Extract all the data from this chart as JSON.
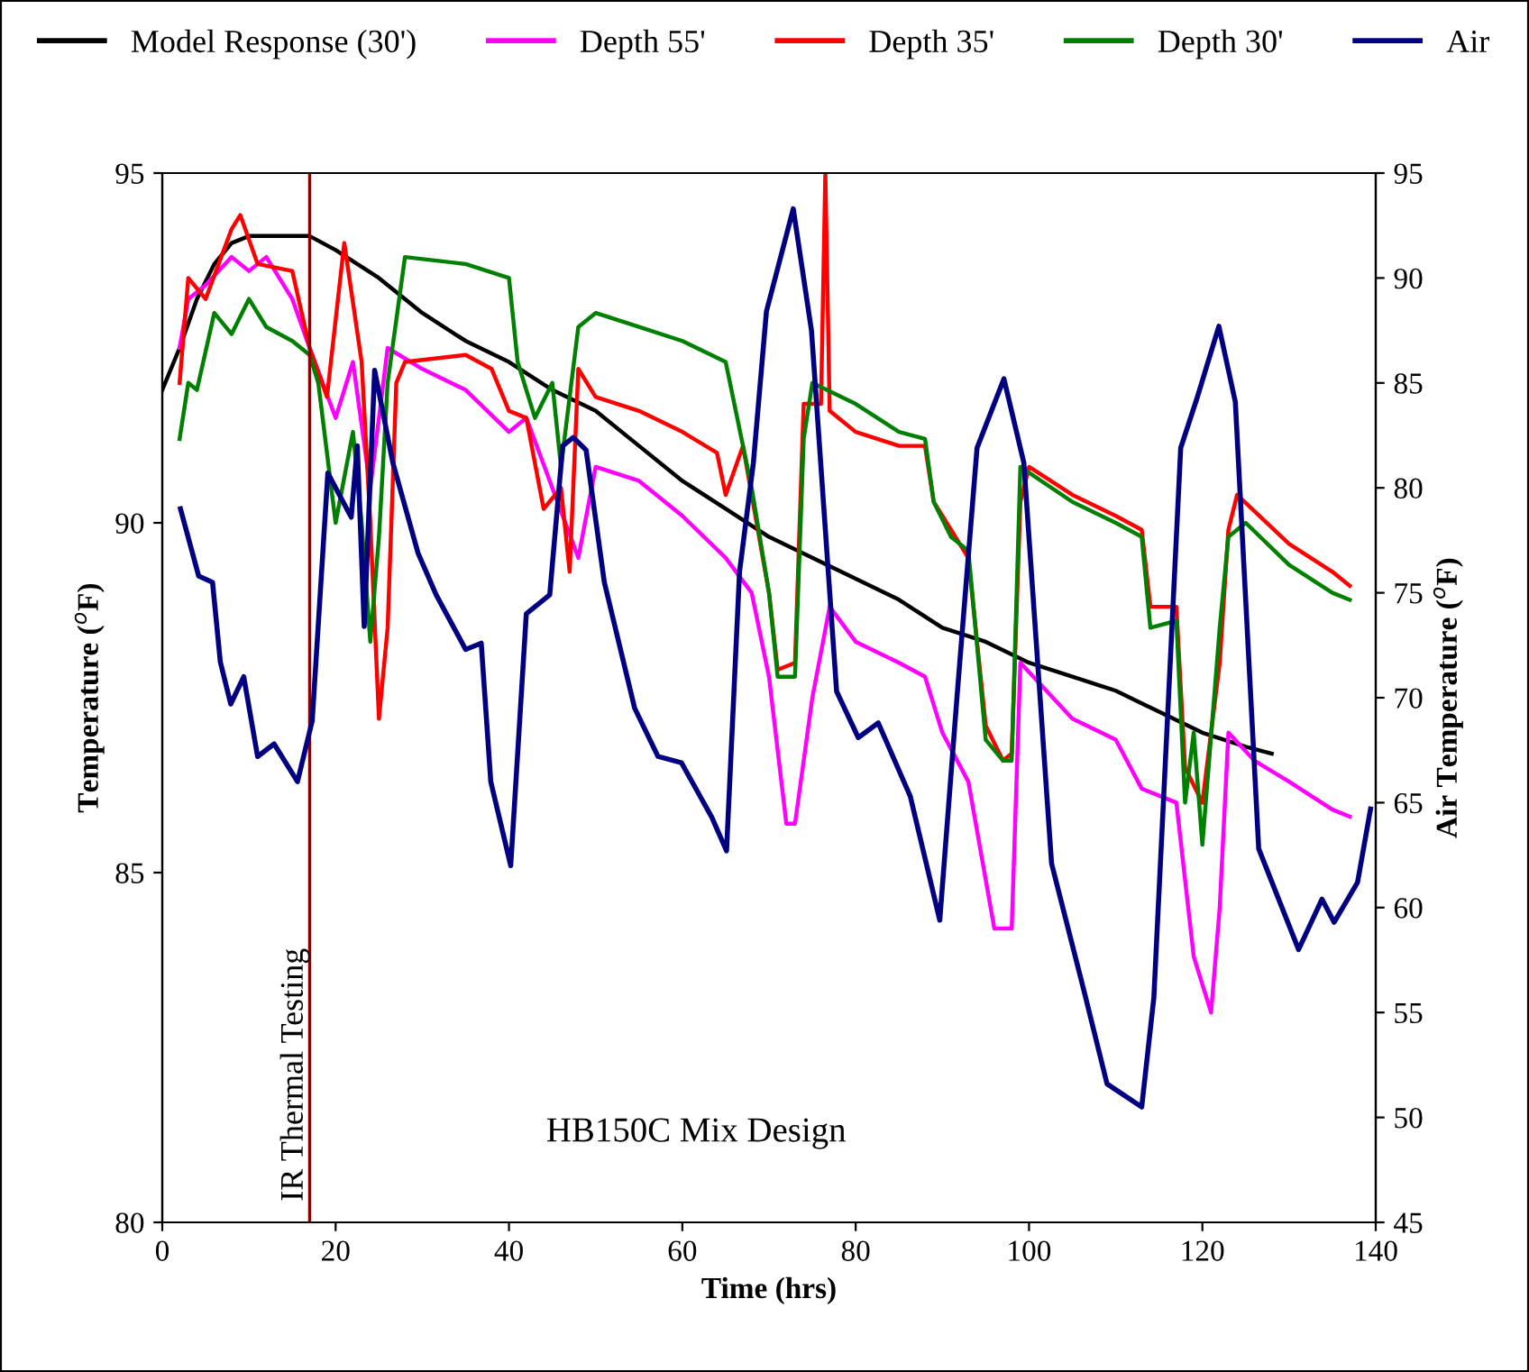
{
  "chart_data": {
    "type": "line",
    "xlabel": "Time (hrs)",
    "ylabel": "Temperature ($^{o}$F)",
    "y2label": "Air Temperature ($^{o}$F)",
    "xlim": [
      0,
      140
    ],
    "xticks": [
      0,
      20,
      40,
      60,
      80,
      100,
      120,
      140
    ],
    "ylim": [
      80,
      95
    ],
    "yticks": [
      80,
      85,
      90,
      95
    ],
    "y2lim": [
      45,
      95
    ],
    "y2ticks": [
      45,
      50,
      55,
      60,
      65,
      70,
      75,
      80,
      85,
      90,
      95
    ],
    "grid": false,
    "legend": "top",
    "marker": "none",
    "line_style": "solid",
    "annotations": [
      "HB150C Mix Design"
    ],
    "ref_lines": [
      {
        "axis": "x",
        "value": 17,
        "label": "IR Thermal Testing",
        "color": "#8b0000"
      }
    ],
    "series": [
      {
        "name": "Model Response (30')",
        "color": "#000000",
        "x": [
          0,
          2,
          4,
          6,
          8,
          10,
          13,
          17,
          20,
          25,
          30,
          35,
          40,
          45,
          50,
          55,
          60,
          65,
          70,
          75,
          80,
          85,
          90,
          95,
          100,
          105,
          110,
          115,
          120,
          125,
          128
        ],
        "values": [
          91.9,
          92.5,
          93.2,
          93.7,
          94.0,
          94.1,
          94.1,
          94.1,
          93.9,
          93.5,
          93.0,
          92.6,
          92.3,
          91.9,
          91.6,
          91.1,
          90.6,
          90.2,
          89.8,
          89.5,
          89.2,
          88.9,
          88.5,
          88.3,
          88.0,
          87.8,
          87.6,
          87.3,
          87.0,
          86.8,
          86.7
        ]
      },
      {
        "name": "Depth 55'",
        "color": "#ff00ff",
        "x": [
          2,
          3,
          5,
          8,
          10,
          12,
          15,
          17,
          20,
          22,
          24,
          26,
          30,
          35,
          40,
          42,
          45,
          48,
          50,
          55,
          60,
          65,
          68,
          70,
          72,
          73,
          75,
          77,
          80,
          85,
          88,
          90,
          93,
          96,
          98,
          99,
          105,
          110,
          113,
          117,
          119,
          121,
          122,
          123,
          126,
          130,
          135,
          137
        ],
        "values": [
          92.5,
          93.2,
          93.4,
          93.8,
          93.6,
          93.8,
          93.2,
          92.5,
          91.5,
          92.3,
          90.5,
          92.5,
          92.2,
          91.9,
          91.3,
          91.5,
          90.5,
          89.5,
          90.8,
          90.6,
          90.1,
          89.5,
          89.0,
          87.8,
          85.7,
          85.7,
          87.5,
          88.8,
          88.3,
          88.0,
          87.8,
          87.0,
          86.3,
          84.2,
          84.2,
          88.0,
          87.2,
          86.9,
          86.2,
          86.0,
          83.8,
          83.0,
          84.5,
          87.0,
          86.6,
          86.3,
          85.9,
          85.8
        ]
      },
      {
        "name": "Depth 35'",
        "color": "#ff0000",
        "x": [
          2,
          3,
          5,
          8,
          9,
          11,
          15,
          17,
          19,
          21,
          23,
          24,
          25,
          26,
          27,
          28,
          35,
          38,
          40,
          42,
          44,
          46,
          47,
          48,
          50,
          55,
          60,
          64,
          65,
          67,
          70,
          71,
          73,
          74,
          76,
          76.5,
          77,
          80,
          85,
          88,
          89,
          91,
          93,
          95,
          97,
          98,
          99,
          100,
          105,
          110,
          113,
          114,
          117,
          118,
          120,
          122,
          123,
          124,
          130,
          135,
          137
        ],
        "values": [
          92.0,
          93.5,
          93.2,
          94.2,
          94.4,
          93.7,
          93.6,
          92.5,
          91.8,
          94.0,
          92.3,
          90.0,
          87.2,
          88.5,
          92.0,
          92.3,
          92.4,
          92.2,
          91.6,
          91.5,
          90.2,
          90.5,
          89.3,
          92.2,
          91.8,
          91.6,
          91.3,
          91.0,
          90.4,
          91.1,
          89.0,
          87.9,
          88.0,
          91.7,
          91.7,
          95.0,
          91.6,
          91.3,
          91.1,
          91.1,
          90.3,
          89.9,
          89.5,
          87.1,
          86.6,
          86.7,
          90.3,
          90.8,
          90.4,
          90.1,
          89.9,
          88.8,
          88.8,
          86.5,
          86.0,
          88.0,
          89.9,
          90.4,
          89.7,
          89.3,
          89.1
        ]
      },
      {
        "name": "Depth 30'",
        "color": "#008000",
        "x": [
          2,
          3,
          4,
          6,
          8,
          10,
          12,
          15,
          17,
          18,
          20,
          22,
          23,
          24,
          25,
          26,
          28,
          35,
          40,
          41,
          43,
          45,
          46,
          48,
          50,
          55,
          60,
          65,
          68,
          70,
          71,
          73,
          74,
          75,
          80,
          85,
          88,
          89,
          91,
          93,
          95,
          97,
          98,
          99,
          105,
          110,
          113,
          114,
          117,
          118,
          119,
          120,
          122,
          123,
          125,
          130,
          135,
          137
        ],
        "values": [
          91.2,
          92.0,
          91.9,
          93.0,
          92.7,
          93.2,
          92.8,
          92.6,
          92.4,
          92.0,
          90.0,
          91.3,
          90.0,
          88.3,
          89.8,
          92.0,
          93.8,
          93.7,
          93.5,
          92.3,
          91.5,
          92.0,
          90.8,
          92.8,
          93.0,
          92.8,
          92.6,
          92.3,
          90.5,
          89.0,
          87.8,
          87.8,
          91.2,
          92.0,
          91.7,
          91.3,
          91.2,
          90.3,
          89.8,
          89.6,
          86.9,
          86.6,
          86.6,
          90.8,
          90.3,
          90.0,
          89.8,
          88.5,
          88.6,
          86.0,
          87.0,
          85.4,
          88.5,
          89.8,
          90.0,
          89.4,
          89.0,
          88.9
        ]
      },
      {
        "name": "Air",
        "color": "#000080",
        "axis": "y2",
        "x": [
          2.1,
          4.2,
          5.8,
          6.7,
          7.9,
          9.4,
          11,
          12.9,
          15.6,
          17.3,
          19.1,
          21.8,
          22.5,
          23.3,
          24.5,
          26.6,
          29.5,
          31.6,
          35,
          36.8,
          37.9,
          40.2,
          42,
          44.7,
          46.2,
          47.4,
          48.9,
          51,
          54.5,
          57.2,
          59.9,
          63.4,
          65.1,
          66.6,
          68.2,
          69.7,
          72.8,
          74.9,
          77.8,
          80.3,
          82.6,
          86.3,
          89.7,
          91.7,
          94,
          97.1,
          99.4,
          102.6,
          106.3,
          109,
          113,
          114.4,
          117.5,
          119.4,
          121.9,
          123.8,
          126.5,
          131.1,
          133.8,
          135.2,
          137.9,
          139.4
        ],
        "values": [
          79.0,
          75.8,
          75.5,
          71.7,
          69.7,
          71.0,
          67.2,
          67.8,
          66.0,
          68.9,
          80.7,
          78.6,
          82.0,
          73.4,
          85.6,
          81.2,
          76.9,
          74.9,
          72.3,
          72.6,
          66.0,
          62.0,
          74.0,
          74.9,
          82.0,
          82.4,
          81.8,
          75.5,
          69.5,
          67.2,
          66.9,
          64.3,
          62.7,
          76.0,
          81.2,
          88.4,
          93.3,
          87.5,
          70.3,
          68.1,
          68.8,
          65.3,
          59.4,
          70.1,
          81.9,
          85.2,
          81.2,
          62.1,
          56.1,
          51.6,
          50.5,
          55.7,
          81.9,
          84.3,
          87.7,
          84.1,
          62.8,
          58.0,
          60.4,
          59.3,
          61.2,
          64.7
        ]
      }
    ]
  }
}
